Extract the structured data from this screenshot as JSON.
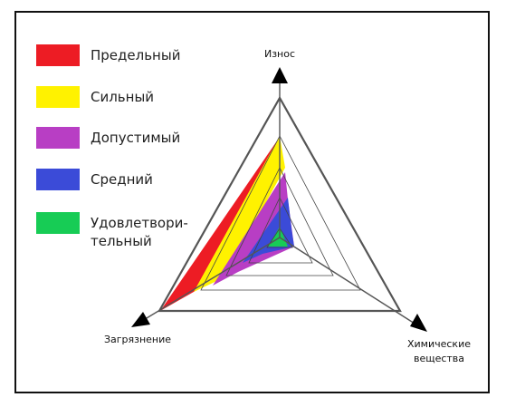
{
  "legend": [
    {
      "label": "Предельный",
      "color": "#ed1c24"
    },
    {
      "label": "Сильный",
      "color": "#fff200"
    },
    {
      "label": "Допустимый",
      "color": "#b83ec4"
    },
    {
      "label": "Средний",
      "color": "#3b4bd8"
    },
    {
      "label": "Удовлетвори-тельный",
      "label_line1": "Удовлетвори-",
      "label_line2": "тельный",
      "color": "#17cc55"
    }
  ],
  "axes": {
    "top": "Износ",
    "left": "Загрязнение",
    "right_line1": "Химические",
    "right_line2": "вещества"
  },
  "chart_data": {
    "type": "radar",
    "axes": [
      "Износ",
      "Загрязнение",
      "Химические вещества"
    ],
    "series": [
      {
        "name": "Предельный",
        "color": "#ed1c24"
      },
      {
        "name": "Сильный",
        "color": "#fff200"
      },
      {
        "name": "Допустимый",
        "color": "#b83ec4"
      },
      {
        "name": "Средний",
        "color": "#3b4bd8"
      },
      {
        "name": "Удовлетворительный",
        "color": "#17cc55"
      }
    ]
  }
}
